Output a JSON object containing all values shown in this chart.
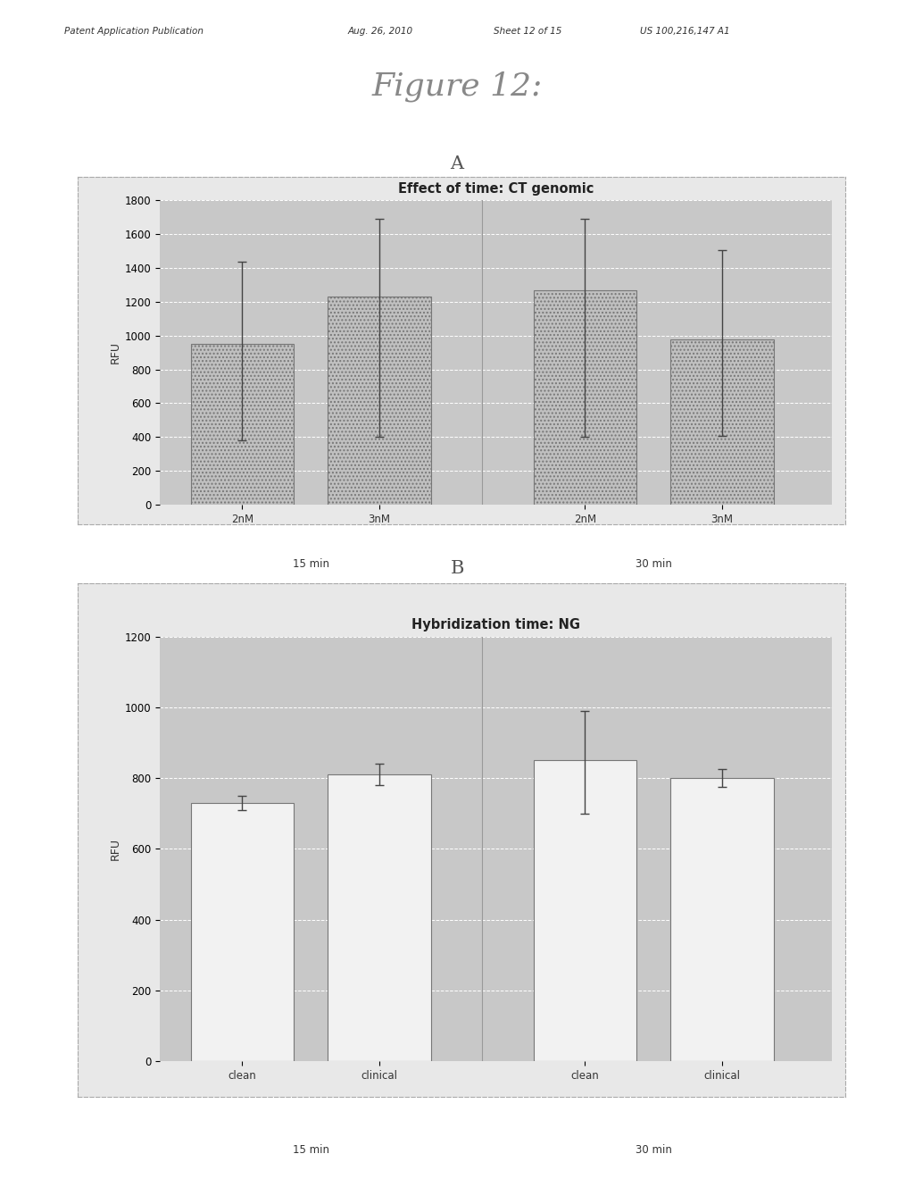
{
  "fig_title": "Figure 12:",
  "header_left": "Patent Application Publication",
  "header_mid1": "Aug. 26, 2010",
  "header_mid2": "Sheet 12 of 15",
  "header_right": "US 100,216,147 A1",
  "chart_A": {
    "title": "Effect of time: CT genomic",
    "label": "A",
    "ylabel": "RFU",
    "ylim": [
      0,
      1800
    ],
    "yticks": [
      0,
      200,
      400,
      600,
      800,
      1000,
      1200,
      1400,
      1600,
      1800
    ],
    "categories": [
      "2nM",
      "3nM",
      "2nM",
      "3nM"
    ],
    "group_labels": [
      "15 min",
      "30 min"
    ],
    "values": [
      950,
      1230,
      1270,
      975
    ],
    "errors_upper": [
      490,
      460,
      420,
      530
    ],
    "errors_lower": [
      570,
      830,
      870,
      570
    ],
    "bar_color": "#c0c0c0",
    "bar_edge_color": "#777777",
    "plot_bg_color": "#c8c8c8",
    "outer_bg_color": "#e8e8e8",
    "x_positions": [
      0.7,
      1.7,
      3.2,
      4.2
    ],
    "xlim": [
      0.1,
      5.0
    ],
    "bar_width": 0.75,
    "separator_x": 2.45
  },
  "chart_B": {
    "title": "Hybridization time: NG",
    "label": "B",
    "ylabel": "RFU",
    "ylim": [
      0,
      1200
    ],
    "yticks": [
      0,
      200,
      400,
      600,
      800,
      1000,
      1200
    ],
    "categories": [
      "clean",
      "clinical",
      "clean",
      "clinical"
    ],
    "group_labels": [
      "15 min",
      "30 min"
    ],
    "values": [
      730,
      810,
      850,
      800
    ],
    "errors_upper": [
      20,
      30,
      140,
      25
    ],
    "errors_lower": [
      20,
      30,
      150,
      25
    ],
    "bar_color": "#f2f2f2",
    "bar_edge_color": "#777777",
    "plot_bg_color": "#c8c8c8",
    "outer_bg_color": "#e8e8e8",
    "x_positions": [
      0.7,
      1.7,
      3.2,
      4.2
    ],
    "xlim": [
      0.1,
      5.0
    ],
    "bar_width": 0.75,
    "separator_x": 2.45
  }
}
